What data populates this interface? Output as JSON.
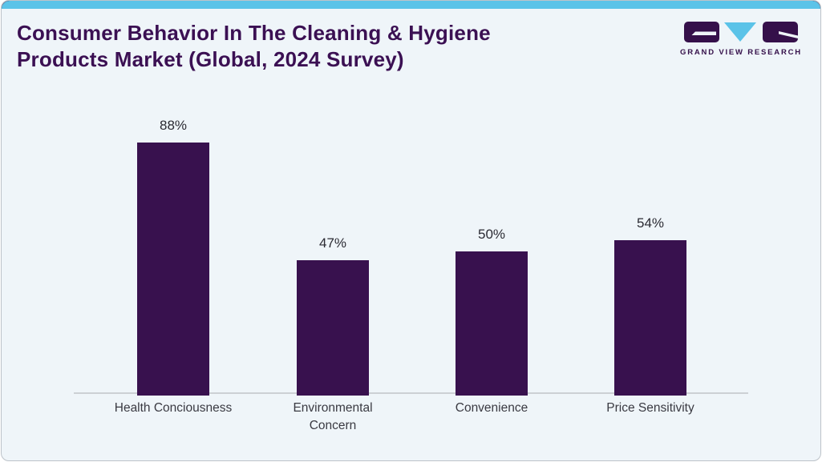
{
  "header": {
    "title": "Consumer Behavior In The Cleaning & Hygiene Products Market (Global, 2024 Survey)"
  },
  "logo": {
    "text": "GRAND VIEW RESEARCH"
  },
  "chart_data": {
    "type": "bar",
    "title": "Consumer Behavior In The Cleaning & Hygiene Products Market (Global, 2024 Survey)",
    "categories": [
      "Health Conciousness",
      "Environmental\nConcern",
      "Convenience",
      "Price Sensitivity"
    ],
    "values": [
      88,
      47,
      50,
      54
    ],
    "value_labels": [
      "88%",
      "47%",
      "50%",
      "54%"
    ],
    "xlabel": "",
    "ylabel": "",
    "ylim": [
      0,
      100
    ],
    "grid": false,
    "legend": "none",
    "bar_color": "#38114e"
  },
  "colors": {
    "accent_blue": "#5bc3e8",
    "bar_purple": "#38114e",
    "title_purple": "#3b1053",
    "card_background": "#eff5f9",
    "axis_gray": "#ccd0d4"
  }
}
